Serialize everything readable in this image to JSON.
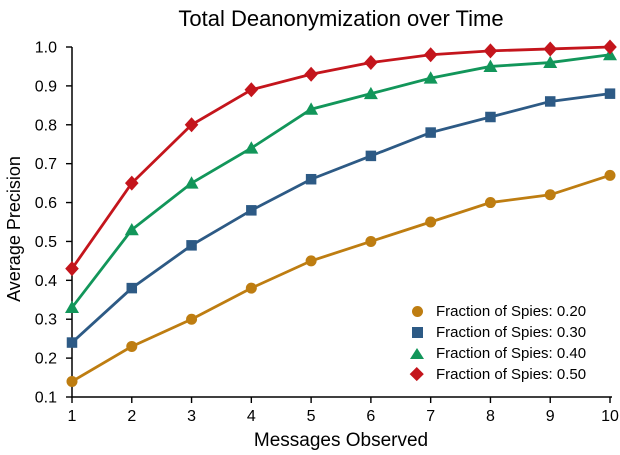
{
  "chart_data": {
    "type": "line",
    "title": "Total Deanonymization over Time",
    "xlabel": "Messages Observed",
    "ylabel": "Average Precision",
    "x": [
      1,
      2,
      3,
      4,
      5,
      6,
      7,
      8,
      9,
      10
    ],
    "xlim": [
      1,
      10
    ],
    "ylim": [
      0.1,
      1.0
    ],
    "xticks": [
      1,
      2,
      3,
      4,
      5,
      6,
      7,
      8,
      9,
      10
    ],
    "yticks": [
      0.1,
      0.2,
      0.3,
      0.4,
      0.5,
      0.6,
      0.7,
      0.8,
      0.9,
      1.0
    ],
    "grid": false,
    "legend_position": "lower right",
    "axis_color": "#000000",
    "series": [
      {
        "name": "Fraction of Spies: 0.20",
        "marker": "circle",
        "color": "#BE7D11",
        "values": [
          0.14,
          0.23,
          0.3,
          0.38,
          0.45,
          0.5,
          0.55,
          0.6,
          0.62,
          0.67
        ]
      },
      {
        "name": "Fraction of Spies: 0.30",
        "marker": "square",
        "color": "#2D5A85",
        "values": [
          0.24,
          0.38,
          0.49,
          0.58,
          0.66,
          0.72,
          0.78,
          0.82,
          0.86,
          0.88
        ]
      },
      {
        "name": "Fraction of Spies: 0.40",
        "marker": "triangle",
        "color": "#12965A",
        "values": [
          0.33,
          0.53,
          0.65,
          0.74,
          0.84,
          0.88,
          0.92,
          0.95,
          0.96,
          0.98
        ]
      },
      {
        "name": "Fraction of Spies: 0.50",
        "marker": "diamond",
        "color": "#C4151C",
        "values": [
          0.43,
          0.65,
          0.8,
          0.89,
          0.93,
          0.96,
          0.98,
          0.99,
          0.995,
          1.0
        ]
      }
    ]
  }
}
